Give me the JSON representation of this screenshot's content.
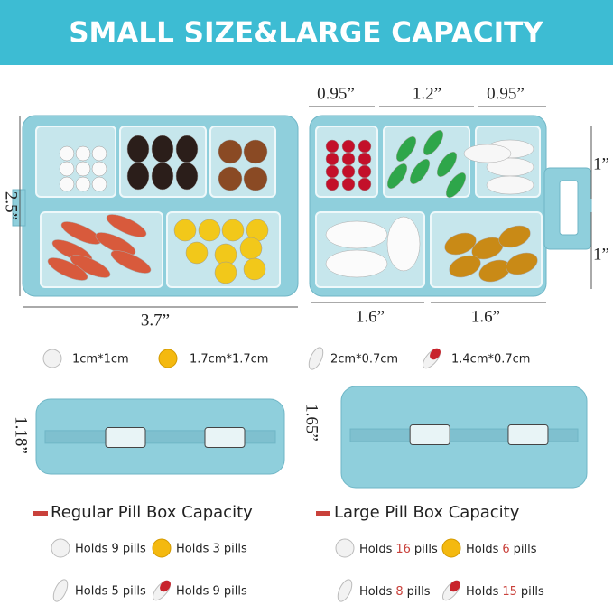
{
  "header": {
    "title": "SMALL SIZE&LARGE CAPACITY"
  },
  "dimensions": {
    "top": [
      "0.95”",
      "1.2”",
      "0.95”"
    ],
    "height": "2.5”",
    "right": [
      "1”",
      "1”"
    ],
    "width": "3.7”",
    "bottom": [
      "1.6”",
      "1.6”"
    ]
  },
  "pill_sizes": [
    "1cm*1cm",
    "1.7cm*1.7cm",
    "2cm*0.7cm",
    "1.4cm*0.7cm"
  ],
  "closed_heights": {
    "regular": "1.18”",
    "large": "1.65”"
  },
  "capacity": {
    "regular": {
      "title": "Regular Pill Box Capacity",
      "items": [
        "Holds 9 pills",
        "Holds 3 pills",
        "Holds 5 pills",
        "Holds 9 pills"
      ]
    },
    "large": {
      "title": "Large Pill Box Capacity",
      "items": [
        {
          "prefix": "Holds",
          "count": 16,
          "suffix": "pills"
        },
        {
          "prefix": "Holds",
          "count": 6,
          "suffix": "pills"
        },
        {
          "prefix": "Holds",
          "count": 8,
          "suffix": "pills"
        },
        {
          "prefix": "Holds",
          "count": 15,
          "suffix": "pills"
        }
      ]
    }
  }
}
